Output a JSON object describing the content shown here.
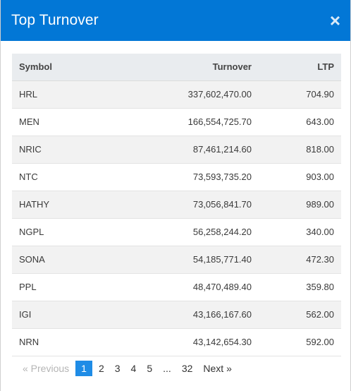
{
  "modal": {
    "title": "Top Turnover",
    "close_glyph": "×"
  },
  "table": {
    "headers": {
      "symbol": "Symbol",
      "turnover": "Turnover",
      "ltp": "LTP"
    },
    "rows": [
      {
        "symbol": "HRL",
        "turnover": "337,602,470.00",
        "ltp": "704.90"
      },
      {
        "symbol": "MEN",
        "turnover": "166,554,725.70",
        "ltp": "643.00"
      },
      {
        "symbol": "NRIC",
        "turnover": "87,461,214.60",
        "ltp": "818.00"
      },
      {
        "symbol": "NTC",
        "turnover": "73,593,735.20",
        "ltp": "903.00"
      },
      {
        "symbol": "HATHY",
        "turnover": "73,056,841.70",
        "ltp": "989.00"
      },
      {
        "symbol": "NGPL",
        "turnover": "56,258,244.20",
        "ltp": "340.00"
      },
      {
        "symbol": "SONA",
        "turnover": "54,185,771.40",
        "ltp": "472.30"
      },
      {
        "symbol": "PPL",
        "turnover": "48,470,489.40",
        "ltp": "359.80"
      },
      {
        "symbol": "IGI",
        "turnover": "43,166,167.60",
        "ltp": "562.00"
      },
      {
        "symbol": "NRN",
        "turnover": "43,142,654.30",
        "ltp": "592.00"
      }
    ]
  },
  "pagination": {
    "previous": "«  Previous",
    "pages": [
      "1",
      "2",
      "3",
      "4",
      "5"
    ],
    "ellipsis": "...",
    "last": "32",
    "next": "Next  »",
    "current": "1"
  }
}
